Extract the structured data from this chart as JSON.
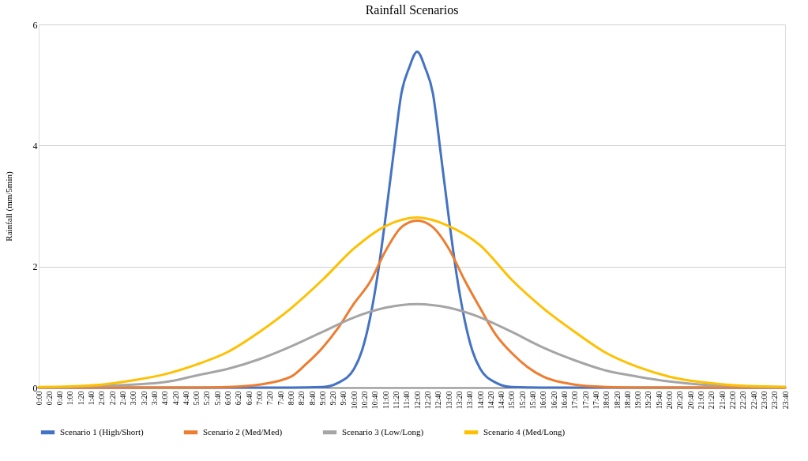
{
  "chart_data": {
    "type": "line",
    "title": "Rainfall Scenarios",
    "ylabel": "Rainfall (mm/5min)",
    "ylim": [
      0,
      6
    ],
    "yticks": [
      0,
      2,
      4,
      6
    ],
    "xlim": [
      0,
      23.6667
    ],
    "grid": "y",
    "legend": "bottom",
    "xticks": [
      {
        "value": 0,
        "label": "0:00"
      },
      {
        "value": 0.3333,
        "label": "0:20"
      },
      {
        "value": 0.6667,
        "label": "0:40"
      },
      {
        "value": 1,
        "label": "1:00"
      },
      {
        "value": 1.3333,
        "label": "1:20"
      },
      {
        "value": 1.6667,
        "label": "1:40"
      },
      {
        "value": 2,
        "label": "2:00"
      },
      {
        "value": 2.3333,
        "label": "2:20"
      },
      {
        "value": 2.6667,
        "label": "2:40"
      },
      {
        "value": 3,
        "label": "3:00"
      },
      {
        "value": 3.3333,
        "label": "3:20"
      },
      {
        "value": 3.6667,
        "label": "3:40"
      },
      {
        "value": 4,
        "label": "4:00"
      },
      {
        "value": 4.3333,
        "label": "4:20"
      },
      {
        "value": 4.6667,
        "label": "4:40"
      },
      {
        "value": 5,
        "label": "5:00"
      },
      {
        "value": 5.3333,
        "label": "5:20"
      },
      {
        "value": 5.6667,
        "label": "5:40"
      },
      {
        "value": 6,
        "label": "6:00"
      },
      {
        "value": 6.3333,
        "label": "6:20"
      },
      {
        "value": 6.6667,
        "label": "6:40"
      },
      {
        "value": 7,
        "label": "7:00"
      },
      {
        "value": 7.3333,
        "label": "7:20"
      },
      {
        "value": 7.6667,
        "label": "7:40"
      },
      {
        "value": 8,
        "label": "8:00"
      },
      {
        "value": 8.3333,
        "label": "8:20"
      },
      {
        "value": 8.6667,
        "label": "8:40"
      },
      {
        "value": 9,
        "label": "9:00"
      },
      {
        "value": 9.3333,
        "label": "9:20"
      },
      {
        "value": 9.6667,
        "label": "9:40"
      },
      {
        "value": 10,
        "label": "10:00"
      },
      {
        "value": 10.3333,
        "label": "10:20"
      },
      {
        "value": 10.6667,
        "label": "10:40"
      },
      {
        "value": 11,
        "label": "11:00"
      },
      {
        "value": 11.3333,
        "label": "11:20"
      },
      {
        "value": 11.6667,
        "label": "11:40"
      },
      {
        "value": 12,
        "label": "12:00"
      },
      {
        "value": 12.3333,
        "label": "12:20"
      },
      {
        "value": 12.6667,
        "label": "12:40"
      },
      {
        "value": 13,
        "label": "13:00"
      },
      {
        "value": 13.3333,
        "label": "13:20"
      },
      {
        "value": 13.6667,
        "label": "13:40"
      },
      {
        "value": 14,
        "label": "14:00"
      },
      {
        "value": 14.3333,
        "label": "14:20"
      },
      {
        "value": 14.6667,
        "label": "14:40"
      },
      {
        "value": 15,
        "label": "15:00"
      },
      {
        "value": 15.3333,
        "label": "15:20"
      },
      {
        "value": 15.6667,
        "label": "15:40"
      },
      {
        "value": 16,
        "label": "16:00"
      },
      {
        "value": 16.3333,
        "label": "16:20"
      },
      {
        "value": 16.6667,
        "label": "16:40"
      },
      {
        "value": 17,
        "label": "17:00"
      },
      {
        "value": 17.3333,
        "label": "17:20"
      },
      {
        "value": 17.6667,
        "label": "17:40"
      },
      {
        "value": 18,
        "label": "18:00"
      },
      {
        "value": 18.3333,
        "label": "18:20"
      },
      {
        "value": 18.6667,
        "label": "18:40"
      },
      {
        "value": 19,
        "label": "19:00"
      },
      {
        "value": 19.3333,
        "label": "19:20"
      },
      {
        "value": 19.6667,
        "label": "19:40"
      },
      {
        "value": 20,
        "label": "20:00"
      },
      {
        "value": 20.3333,
        "label": "20:20"
      },
      {
        "value": 20.6667,
        "label": "20:40"
      },
      {
        "value": 21,
        "label": "21:00"
      },
      {
        "value": 21.3333,
        "label": "21:20"
      },
      {
        "value": 21.6667,
        "label": "21:40"
      },
      {
        "value": 22,
        "label": "22:00"
      },
      {
        "value": 22.3333,
        "label": "22:20"
      },
      {
        "value": 22.6667,
        "label": "22:40"
      },
      {
        "value": 23,
        "label": "23:00"
      },
      {
        "value": 23.3333,
        "label": "23:20"
      },
      {
        "value": 23.6667,
        "label": "23:40"
      }
    ],
    "series": [
      {
        "name": "Scenario 1 (High/Short)",
        "color": "#4472c4",
        "x": [
          0,
          8,
          9,
          9.5,
          10,
          10.25,
          10.5,
          10.75,
          11,
          11.25,
          11.5,
          11.75,
          12,
          12.25,
          12.5,
          12.75,
          13,
          13.25,
          13.5,
          13.75,
          14,
          14.5,
          15,
          16,
          23.6667
        ],
        "values": [
          0,
          0,
          0.01,
          0.08,
          0.31,
          0.61,
          1.13,
          1.87,
          2.82,
          3.86,
          4.86,
          5.29,
          5.55,
          5.29,
          4.86,
          3.86,
          2.82,
          1.87,
          1.13,
          0.61,
          0.31,
          0.08,
          0.01,
          0,
          0
        ]
      },
      {
        "name": "Scenario 2 (Med/Med)",
        "color": "#ed7d31",
        "x": [
          0,
          5,
          6,
          7,
          8,
          8.5,
          9,
          9.5,
          10,
          10.5,
          11,
          11.5,
          12,
          12.5,
          13,
          13.5,
          14,
          14.5,
          15,
          15.5,
          16,
          17,
          18,
          19,
          23.6667
        ],
        "values": [
          0,
          0,
          0.01,
          0.05,
          0.18,
          0.4,
          0.66,
          0.99,
          1.39,
          1.74,
          2.26,
          2.65,
          2.76,
          2.65,
          2.3,
          1.78,
          1.31,
          0.87,
          0.57,
          0.34,
          0.18,
          0.05,
          0.01,
          0,
          0
        ]
      },
      {
        "name": "Scenario 3 (Low/Long)",
        "color": "#a5a5a5",
        "x": [
          0,
          1,
          2,
          3,
          4,
          5,
          6,
          7,
          8,
          9,
          10,
          11,
          12,
          13,
          14,
          15,
          16,
          17,
          18,
          19,
          20,
          21,
          22,
          23,
          23.6667
        ],
        "values": [
          0,
          0.01,
          0.03,
          0.05,
          0.09,
          0.2,
          0.31,
          0.47,
          0.68,
          0.92,
          1.16,
          1.32,
          1.38,
          1.32,
          1.16,
          0.92,
          0.66,
          0.45,
          0.28,
          0.18,
          0.1,
          0.05,
          0.03,
          0.01,
          0.01
        ]
      },
      {
        "name": "Scenario 4 (Med/Long)",
        "color": "#ffc000",
        "x": [
          0,
          1,
          2,
          3,
          4,
          5,
          6,
          7,
          8,
          9,
          10,
          11,
          12,
          13,
          14,
          15,
          16,
          17,
          18,
          19,
          20,
          21,
          22,
          23,
          23.6667
        ],
        "values": [
          0.01,
          0.02,
          0.05,
          0.12,
          0.22,
          0.38,
          0.59,
          0.92,
          1.31,
          1.78,
          2.3,
          2.67,
          2.81,
          2.67,
          2.35,
          1.78,
          1.31,
          0.92,
          0.57,
          0.34,
          0.18,
          0.09,
          0.04,
          0.02,
          0.01
        ]
      }
    ]
  }
}
